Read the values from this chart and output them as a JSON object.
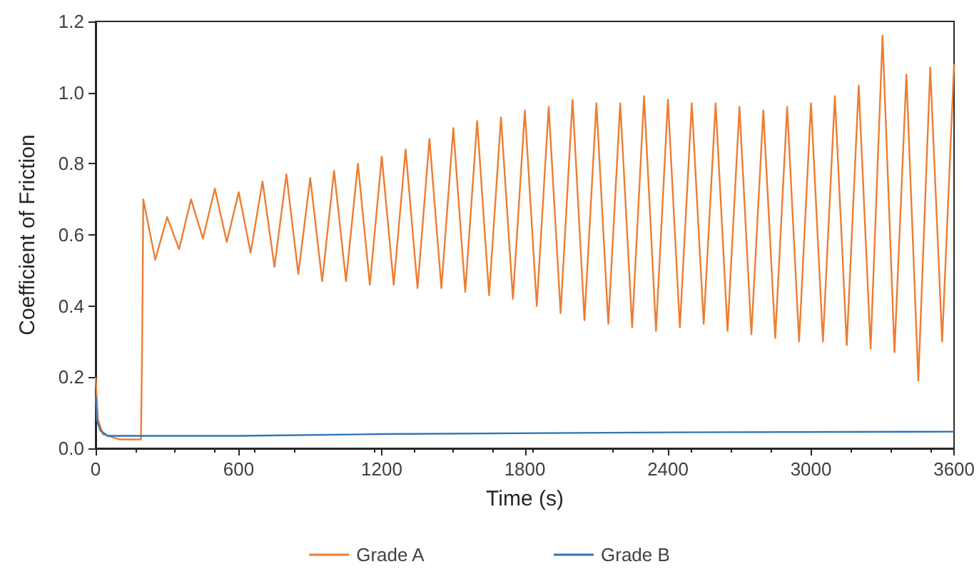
{
  "chart_data": {
    "type": "line",
    "xlabel": "Time (s)",
    "ylabel": "Coefficient of Friction",
    "xlim": [
      0,
      3600
    ],
    "xticks": [
      0,
      600,
      1200,
      1800,
      2400,
      3000,
      3600
    ],
    "ylim": [
      0,
      1.2
    ],
    "yticks": [
      {
        "value": 0,
        "label": "0.0"
      },
      {
        "value": 0.2,
        "label": "0.2"
      },
      {
        "value": 0.4,
        "label": "0.4"
      },
      {
        "value": 0.6,
        "label": "0.6"
      },
      {
        "value": 0.8,
        "label": "0.8"
      },
      {
        "value": 1,
        "label": "1.0"
      },
      {
        "value": 1.2,
        "label": "1.2"
      }
    ],
    "grid": false,
    "legend": "bottom",
    "marker": "none",
    "line_style": "solid",
    "series": [
      {
        "name": "Grade A",
        "color": "#ed7d31",
        "x": [
          0,
          10,
          30,
          100,
          190,
          195,
          200,
          250,
          300,
          350,
          400,
          450,
          500,
          550,
          600,
          650,
          700,
          750,
          800,
          850,
          900,
          950,
          1000,
          1050,
          1100,
          1150,
          1200,
          1250,
          1300,
          1350,
          1400,
          1450,
          1500,
          1550,
          1600,
          1650,
          1700,
          1750,
          1800,
          1850,
          1900,
          1950,
          2000,
          2050,
          2100,
          2150,
          2200,
          2250,
          2300,
          2350,
          2400,
          2450,
          2500,
          2550,
          2600,
          2650,
          2700,
          2750,
          2800,
          2850,
          2900,
          2950,
          3000,
          3050,
          3100,
          3150,
          3200,
          3250,
          3300,
          3350,
          3400,
          3450,
          3500,
          3550,
          3600
        ],
        "values": [
          0.2,
          0.08,
          0.04,
          0.025,
          0.025,
          0.28,
          0.7,
          0.53,
          0.65,
          0.56,
          0.7,
          0.59,
          0.73,
          0.58,
          0.72,
          0.55,
          0.75,
          0.51,
          0.77,
          0.49,
          0.76,
          0.47,
          0.78,
          0.47,
          0.8,
          0.46,
          0.82,
          0.46,
          0.84,
          0.45,
          0.87,
          0.45,
          0.9,
          0.44,
          0.92,
          0.43,
          0.93,
          0.42,
          0.95,
          0.4,
          0.96,
          0.38,
          0.98,
          0.36,
          0.97,
          0.35,
          0.97,
          0.34,
          0.99,
          0.33,
          0.98,
          0.34,
          0.97,
          0.35,
          0.97,
          0.33,
          0.96,
          0.32,
          0.95,
          0.31,
          0.96,
          0.3,
          0.97,
          0.3,
          0.99,
          0.29,
          1.02,
          0.28,
          1.16,
          0.27,
          1.05,
          0.19,
          1.07,
          0.3,
          1.08
        ]
      },
      {
        "name": "Grade B",
        "color": "#2e75b6",
        "x": [
          0,
          5,
          20,
          50,
          600,
          1200,
          2400,
          3600
        ],
        "values": [
          0.15,
          0.08,
          0.05,
          0.035,
          0.035,
          0.04,
          0.045,
          0.047
        ]
      }
    ]
  }
}
